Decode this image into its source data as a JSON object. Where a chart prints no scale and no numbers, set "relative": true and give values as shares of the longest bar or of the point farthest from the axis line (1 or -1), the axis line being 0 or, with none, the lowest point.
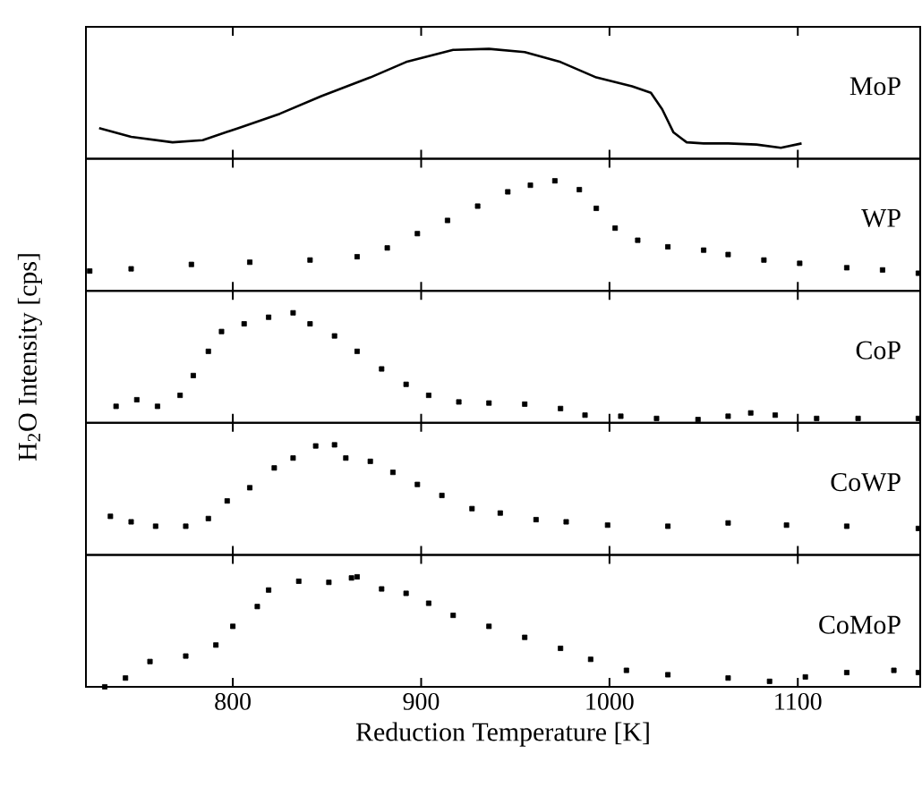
{
  "chart_data": [
    {
      "type": "line",
      "relative": true,
      "xlim": [
        722,
        1165
      ],
      "xticks": [
        800,
        900,
        1000,
        1100
      ],
      "tick_labels": false,
      "x": [
        729,
        746,
        768,
        784,
        803,
        825,
        847,
        873,
        892,
        917,
        936,
        955,
        974,
        993,
        1012,
        1022,
        1028,
        1034,
        1041,
        1050,
        1063,
        1078,
        1091,
        1102
      ],
      "series": [
        {
          "name": "MoP",
          "color": "#000000",
          "values": [
            0.28,
            0.2,
            0.15,
            0.17,
            0.28,
            0.41,
            0.57,
            0.74,
            0.88,
            0.99,
            1.0,
            0.97,
            0.88,
            0.74,
            0.66,
            0.6,
            0.45,
            0.24,
            0.15,
            0.14,
            0.14,
            0.13,
            0.1,
            0.14
          ]
        }
      ]
    },
    {
      "type": "scatter",
      "marker": "square",
      "relative": true,
      "xlim": [
        722,
        1165
      ],
      "xticks": [
        800,
        900,
        1000,
        1100
      ],
      "tick_labels": false,
      "x": [
        724,
        746,
        778,
        809,
        841,
        866,
        882,
        898,
        914,
        930,
        946,
        958,
        971,
        984,
        993,
        1003,
        1015,
        1031,
        1050,
        1063,
        1082,
        1101,
        1126,
        1145,
        1164
      ],
      "series": [
        {
          "name": "WP",
          "color": "#000000",
          "values": [
            0.18,
            0.2,
            0.24,
            0.26,
            0.28,
            0.31,
            0.39,
            0.52,
            0.64,
            0.77,
            0.9,
            0.96,
            1.0,
            0.92,
            0.75,
            0.57,
            0.46,
            0.4,
            0.37,
            0.33,
            0.28,
            0.25,
            0.21,
            0.19,
            0.16
          ]
        }
      ]
    },
    {
      "type": "scatter",
      "marker": "square",
      "relative": true,
      "xlim": [
        722,
        1165
      ],
      "xticks": [
        800,
        900,
        1000,
        1100
      ],
      "tick_labels": false,
      "ylabel": "H$_{2}$O Intensity [cps]",
      "x": [
        738,
        749,
        760,
        772,
        779,
        787,
        794,
        806,
        819,
        832,
        841,
        854,
        866,
        879,
        892,
        904,
        920,
        936,
        955,
        974,
        987,
        1006,
        1025,
        1047,
        1063,
        1075,
        1088,
        1110,
        1132,
        1164
      ],
      "series": [
        {
          "name": "CoP",
          "color": "#000000",
          "values": [
            0.15,
            0.21,
            0.15,
            0.25,
            0.43,
            0.65,
            0.83,
            0.9,
            0.96,
            1.0,
            0.9,
            0.79,
            0.65,
            0.49,
            0.35,
            0.25,
            0.19,
            0.18,
            0.17,
            0.13,
            0.07,
            0.06,
            0.04,
            0.03,
            0.06,
            0.09,
            0.07,
            0.04,
            0.04,
            0.04
          ]
        }
      ]
    },
    {
      "type": "scatter",
      "marker": "square",
      "relative": true,
      "xlim": [
        722,
        1165
      ],
      "xticks": [
        800,
        900,
        1000,
        1100
      ],
      "tick_labels": false,
      "x": [
        735,
        746,
        759,
        775,
        787,
        797,
        809,
        822,
        832,
        844,
        854,
        860,
        873,
        885,
        898,
        911,
        927,
        942,
        961,
        977,
        999,
        1031,
        1063,
        1094,
        1126,
        1164
      ],
      "series": [
        {
          "name": "CoWP",
          "color": "#000000",
          "values": [
            0.35,
            0.3,
            0.26,
            0.26,
            0.33,
            0.49,
            0.61,
            0.79,
            0.88,
            0.99,
            1.0,
            0.88,
            0.85,
            0.75,
            0.64,
            0.54,
            0.42,
            0.38,
            0.32,
            0.3,
            0.27,
            0.26,
            0.29,
            0.27,
            0.26,
            0.24
          ]
        }
      ]
    },
    {
      "type": "scatter",
      "marker": "square",
      "relative": true,
      "xlim": [
        722,
        1165
      ],
      "xticks": [
        800,
        900,
        1000,
        1100
      ],
      "tick_labels": "x",
      "xlabel": "Reduction Temperature [K]",
      "x": [
        732,
        743,
        756,
        775,
        791,
        800,
        813,
        819,
        835,
        851,
        863,
        866,
        879,
        892,
        904,
        917,
        936,
        955,
        974,
        990,
        1009,
        1031,
        1063,
        1085,
        1104,
        1126,
        1151,
        1164
      ],
      "series": [
        {
          "name": "CoMoP",
          "color": "#000000",
          "values": [
            0.0,
            0.08,
            0.23,
            0.28,
            0.38,
            0.55,
            0.73,
            0.88,
            0.96,
            0.95,
            0.99,
            1.0,
            0.89,
            0.85,
            0.76,
            0.65,
            0.55,
            0.45,
            0.35,
            0.25,
            0.15,
            0.11,
            0.08,
            0.05,
            0.09,
            0.13,
            0.15,
            0.13
          ]
        }
      ]
    }
  ]
}
